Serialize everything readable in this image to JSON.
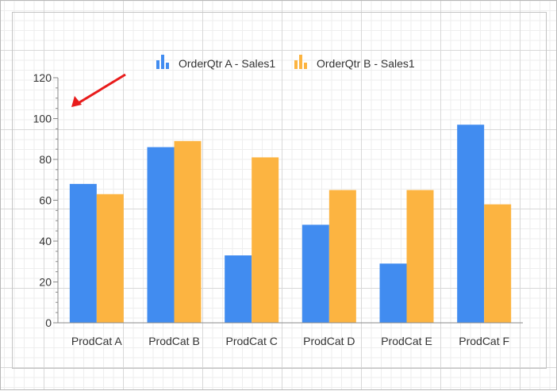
{
  "chart_data": {
    "type": "bar",
    "categories": [
      "ProdCat A",
      "ProdCat B",
      "ProdCat C",
      "ProdCat D",
      "ProdCat E",
      "ProdCat F"
    ],
    "series": [
      {
        "name": "OrderQtr A - Sales1",
        "color": "#418cf0",
        "values": [
          68,
          86,
          33,
          48,
          29,
          97
        ]
      },
      {
        "name": "OrderQtr B - Sales1",
        "color": "#fcb441",
        "values": [
          63,
          89,
          81,
          65,
          65,
          58
        ]
      }
    ],
    "yticks": [
      "0",
      "20",
      "40",
      "60",
      "80",
      "100",
      "120"
    ],
    "ylim": [
      0,
      120
    ],
    "legend_position": "top",
    "grid": true,
    "annotation": {
      "type": "arrow",
      "color": "#e81c1c",
      "points_to": "y-axis top"
    }
  }
}
